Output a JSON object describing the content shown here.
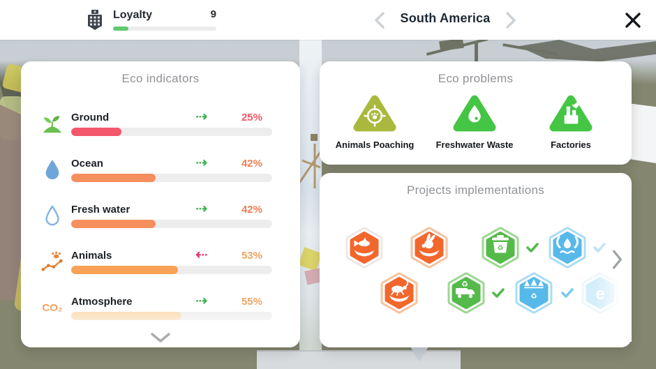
{
  "header": {
    "loyalty": {
      "icon": "loyalty-building-icon",
      "label": "Loyalty",
      "value": "9",
      "progress_pct": 15,
      "bar_color": "#62c96e"
    },
    "region": {
      "title": "South America",
      "prev_icon": "chevron-left-icon",
      "next_icon": "chevron-right-icon"
    },
    "close_icon": "close-icon"
  },
  "eco_indicators": {
    "title": "Eco indicators",
    "rows": [
      {
        "label": "Ground",
        "icon": "sprout-icon",
        "trend": "improving",
        "trend_icon": "⇢",
        "trend_color": "#3fb14e",
        "value": "25%",
        "pct": 25,
        "bar_color": "#f4566b",
        "value_color": "#f2566b"
      },
      {
        "label": "Ocean",
        "icon": "water-drop-filled-icon",
        "trend": "improving",
        "trend_icon": "⇢",
        "trend_color": "#3fb14e",
        "value": "42%",
        "pct": 42,
        "bar_color": "#f68e5e",
        "value_color": "#ee7f53"
      },
      {
        "label": "Fresh water",
        "icon": "water-drop-outline-icon",
        "trend": "improving",
        "trend_icon": "⇢",
        "trend_color": "#3fb14e",
        "value": "42%",
        "pct": 42,
        "bar_color": "#f68e5e",
        "value_color": "#ee7f53"
      },
      {
        "label": "Animals",
        "icon": "paw-trend-icon",
        "trend": "declining",
        "trend_icon": "⇠",
        "trend_color": "#e2356e",
        "value": "53%",
        "pct": 53,
        "bar_color": "#f8a255",
        "value_color": "#eda461"
      },
      {
        "label": "Atmosphere",
        "icon": "co2-icon",
        "icon_text": "CO₂",
        "trend": "improving",
        "trend_icon": "⇢",
        "trend_color": "#3fb14e",
        "value": "55%",
        "pct": 55,
        "bar_color": "#fbd8ac",
        "value_color": "#f0a468"
      }
    ],
    "scroll_more_icon": "chevron-down-icon"
  },
  "eco_problems": {
    "title": "Eco problems",
    "items": [
      {
        "label": "Animals Poaching",
        "icon": "poaching-target-paw-icon",
        "color": "#a9b93d"
      },
      {
        "label": "Freshwater Waste",
        "icon": "freshwater-drop-icon",
        "color": "#44c544"
      },
      {
        "label": "Factories",
        "icon": "factory-icon",
        "color": "#44c544"
      }
    ]
  },
  "projects": {
    "title": "Projects implementations",
    "badges": [
      {
        "icon": "fish-in-hand-icon",
        "color": "#f2672c",
        "ring_color": "#ece9e6",
        "checked": false
      },
      {
        "icon": "rabbit-in-hand-icon",
        "color": "#f2672c",
        "ring_color": "#f6c2a1",
        "checked": false
      },
      {
        "icon": "recycle-bin-icon",
        "color": "#55ba4a",
        "ring_color": "#9dd792",
        "checked": true,
        "check_color": "#55ba4a"
      },
      {
        "icon": "hands-water-icon",
        "color": "#57b9e9",
        "ring_color": "#abdcf4",
        "checked": true,
        "check_color": "#b5e0f5"
      },
      {
        "icon": "beetle-in-hand-icon",
        "color": "#f2672c",
        "ring_color": "#f6c2a1",
        "checked": false
      },
      {
        "icon": "recycle-truck-icon",
        "color": "#55ba4a",
        "ring_color": "#9dd792",
        "checked": true,
        "check_color": "#55ba4a"
      },
      {
        "icon": "forest-recycle-icon",
        "color": "#57b9e9",
        "ring_color": "#abdcf4",
        "checked": true,
        "check_color": "#7fcaee"
      },
      {
        "icon": "eco-partial-icon",
        "color": "#8fd3f2",
        "ring_color": "#cfecfa",
        "checked": false
      }
    ],
    "more_icon": "chevron-right-icon"
  }
}
